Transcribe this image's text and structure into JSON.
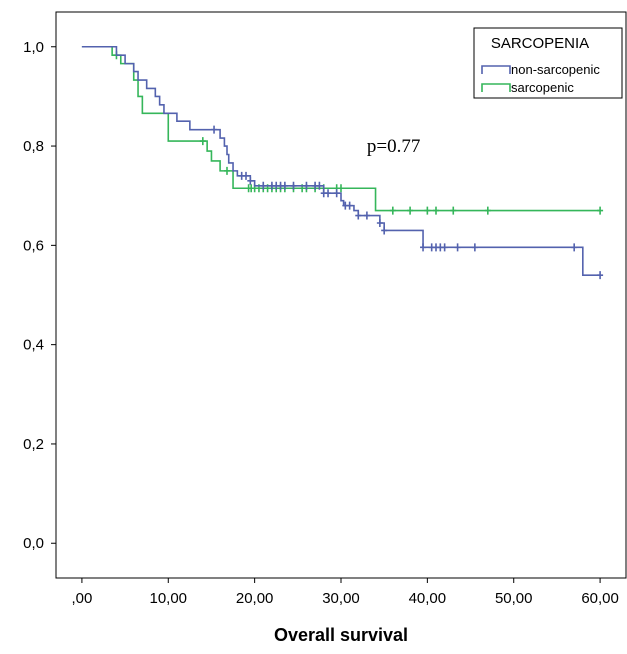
{
  "chart_data": {
    "type": "line",
    "xlabel": "Overall survival",
    "ylabel": "",
    "xlim": [
      -3,
      63
    ],
    "ylim": [
      -0.07,
      1.07
    ],
    "x_ticks": [
      0,
      10,
      20,
      30,
      40,
      50,
      60
    ],
    "x_tick_labels": [
      ",00",
      "10,00",
      "20,00",
      "30,00",
      "40,00",
      "50,00",
      "60,00"
    ],
    "y_ticks": [
      0,
      0.2,
      0.4,
      0.6,
      0.8,
      1.0
    ],
    "y_tick_labels": [
      "0,0",
      "0,2",
      "0,4",
      "0,6",
      "0,8",
      "1,0"
    ],
    "annotation": {
      "text": "p=0.77",
      "x": 33,
      "y": 0.8
    },
    "legend": {
      "title": "SARCOPENIA",
      "placement": "top-right"
    },
    "series": [
      {
        "name": "non-sarcopenic",
        "color": "#5362ae",
        "steps": [
          [
            0,
            1.0
          ],
          [
            4,
            0.983
          ],
          [
            5,
            0.966
          ],
          [
            6,
            0.95
          ],
          [
            6.5,
            0.933
          ],
          [
            7.5,
            0.916
          ],
          [
            8.5,
            0.9
          ],
          [
            9,
            0.883
          ],
          [
            9.5,
            0.866
          ],
          [
            11,
            0.85
          ],
          [
            12.5,
            0.833
          ],
          [
            16,
            0.816
          ],
          [
            16.5,
            0.8
          ],
          [
            16.8,
            0.783
          ],
          [
            17,
            0.766
          ],
          [
            17.5,
            0.75
          ],
          [
            18,
            0.74
          ],
          [
            19.5,
            0.73
          ],
          [
            20,
            0.72
          ],
          [
            28,
            0.705
          ],
          [
            30,
            0.69
          ],
          [
            30.3,
            0.68
          ],
          [
            31.5,
            0.67
          ],
          [
            32,
            0.66
          ],
          [
            34.5,
            0.645
          ],
          [
            35,
            0.63
          ],
          [
            39.5,
            0.596
          ],
          [
            58,
            0.54
          ],
          [
            60,
            0.54
          ]
        ],
        "censor_x": [
          15.3,
          18.5,
          19.0,
          19.5,
          21,
          22,
          22.5,
          23,
          23.5,
          24.5,
          26,
          27,
          27.5,
          28,
          28.5,
          29.5,
          30.5,
          31,
          32,
          33,
          34.5,
          35,
          39.5,
          40.5,
          41,
          41.5,
          42,
          43.5,
          45.5,
          57,
          60
        ]
      },
      {
        "name": "sarcopenic",
        "color": "#35b65a",
        "steps": [
          [
            0,
            1.0
          ],
          [
            3.5,
            0.983
          ],
          [
            4.5,
            0.966
          ],
          [
            6,
            0.933
          ],
          [
            6.5,
            0.9
          ],
          [
            7,
            0.866
          ],
          [
            10,
            0.81
          ],
          [
            14.5,
            0.79
          ],
          [
            15,
            0.77
          ],
          [
            16,
            0.75
          ],
          [
            17.5,
            0.715
          ],
          [
            34,
            0.67
          ],
          [
            60,
            0.67
          ]
        ],
        "censor_x": [
          4.0,
          14.0,
          16.8,
          19.3,
          19.6,
          20,
          20.5,
          21,
          21.5,
          22,
          22.5,
          23,
          23.5,
          24.5,
          25.5,
          26,
          27,
          28,
          29.5,
          30,
          36,
          38,
          40,
          41,
          43,
          47,
          60
        ]
      }
    ]
  }
}
